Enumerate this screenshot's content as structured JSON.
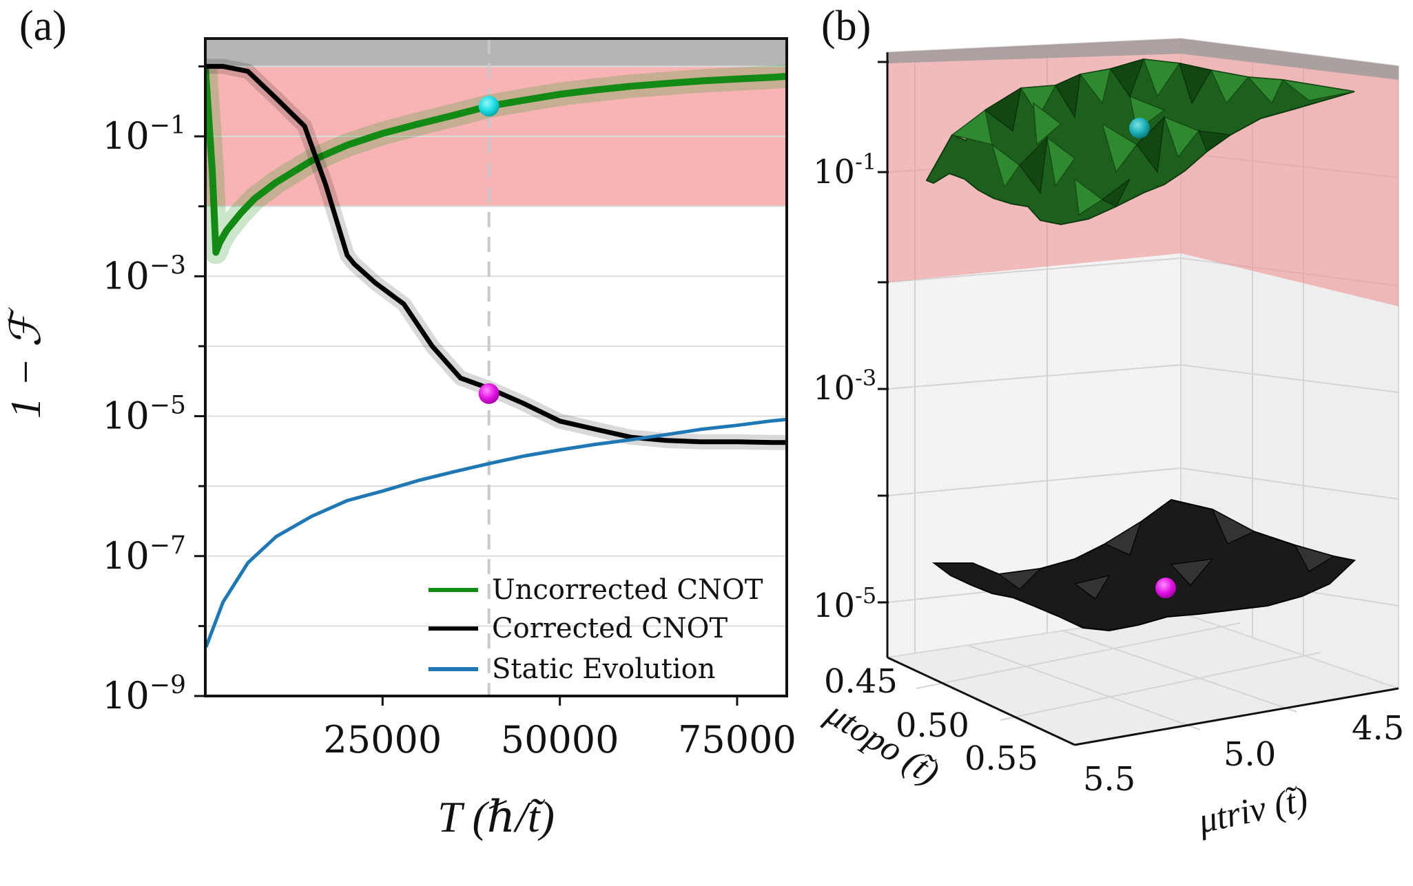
{
  "panel_a": {
    "label": "(a)",
    "ylabel": "1 − ℱ",
    "xlabel": "T (ℏ/t̃)",
    "xticks": [
      "25000",
      "50000",
      "75000"
    ],
    "yticks": [
      "10^-1",
      "10^-3",
      "10^-5",
      "10^-7",
      "10^-9"
    ],
    "legend": [
      "Uncorrected CNOT",
      "Corrected CNOT",
      "Static Evolution"
    ]
  },
  "panel_b": {
    "label": "(b)",
    "zticks": [
      "10^-1",
      "10^-3",
      "10^-5"
    ],
    "topo_ticks": [
      "0.45",
      "0.50",
      "0.55"
    ],
    "triv_ticks": [
      "5.5",
      "5.0",
      "4.5"
    ],
    "topo_label": "μtopo (t̃)",
    "triv_label": "μtriv (t̃)"
  },
  "chart_data": [
    {
      "type": "line",
      "title": "",
      "xlabel": "T (ℏ/t̃)",
      "ylabel": "1 − ℱ",
      "xlim": [
        0,
        82000
      ],
      "ylim": [
        1e-09,
        2.5
      ],
      "yscale": "log",
      "grid": true,
      "legend_position": "bottom-right",
      "vline_x": 40000,
      "shaded_regions": [
        {
          "y_from": 0.01,
          "y_to": 1.0,
          "color": "#f8b4b4"
        },
        {
          "y_from": 1.0,
          "y_to": 2.5,
          "color": "#b5b5b5"
        }
      ],
      "series": [
        {
          "name": "Uncorrected CNOT",
          "color": "#138a13",
          "x": [
            0,
            1000,
            1500,
            2000,
            3000,
            4000,
            5000,
            7000,
            10000,
            15000,
            20000,
            25000,
            30000,
            35000,
            40000,
            45000,
            50000,
            55000,
            60000,
            65000,
            70000,
            75000,
            80000,
            82000
          ],
          "y": [
            1.0,
            0.03,
            0.0022,
            0.003,
            0.0045,
            0.006,
            0.008,
            0.013,
            0.022,
            0.045,
            0.075,
            0.11,
            0.15,
            0.2,
            0.27,
            0.33,
            0.4,
            0.46,
            0.52,
            0.57,
            0.62,
            0.66,
            0.7,
            0.72
          ]
        },
        {
          "name": "Corrected CNOT",
          "color": "#000000",
          "x": [
            0,
            2500,
            6000,
            10000,
            14000,
            17000,
            20000,
            21000,
            24000,
            28000,
            32000,
            36000,
            40000,
            45000,
            50000,
            55000,
            60000,
            65000,
            70000,
            75000,
            80000,
            82000
          ],
          "y": [
            1.0,
            1.0,
            0.85,
            0.35,
            0.14,
            0.02,
            0.002,
            0.0015,
            0.0008,
            0.0004,
            0.0001,
            3.5e-05,
            2.5e-05,
            1.5e-05,
            8.5e-06,
            6.5e-06,
            5e-06,
            4.5e-06,
            4.3e-06,
            4.3e-06,
            4.2e-06,
            4.2e-06
          ]
        },
        {
          "name": "Static Evolution",
          "color": "#1f77b4",
          "x": [
            100,
            2500,
            6000,
            10000,
            15000,
            20000,
            25000,
            30000,
            35000,
            40000,
            45000,
            50000,
            55000,
            60000,
            65000,
            70000,
            75000,
            80000,
            82000
          ],
          "y": [
            5e-09,
            2.2e-08,
            8e-08,
            1.9e-07,
            3.7e-07,
            6.2e-07,
            8.5e-07,
            1.2e-06,
            1.6e-06,
            2.1e-06,
            2.7e-06,
            3.3e-06,
            3.95e-06,
            4.6e-06,
            5.45e-06,
            6.5e-06,
            7.4e-06,
            8.6e-06,
            9e-06
          ]
        }
      ],
      "markers": [
        {
          "x": 40000,
          "y": 0.27,
          "color": "#19d8e0"
        },
        {
          "x": 40000,
          "y": 2.1e-05,
          "color": "#e010e0"
        }
      ]
    },
    {
      "type": "surface3d",
      "title": "",
      "xlabel": "μtriv (t̃)",
      "ylabel": "μtopo (t̃)",
      "zlabel": "",
      "zscale": "log",
      "x_ticks": [
        5.5,
        5.0,
        4.5
      ],
      "y_ticks": [
        0.45,
        0.5,
        0.55
      ],
      "z_ticks": [
        "10^-1",
        "10^-3",
        "10^-5"
      ],
      "surfaces": [
        {
          "name": "Uncorrected CNOT",
          "color": "#1f6a1f",
          "approx_level": 0.05
        },
        {
          "name": "Corrected CNOT",
          "color": "#111111",
          "approx_level": 8e-06
        }
      ],
      "markers": [
        {
          "color": "#19b8c0",
          "surface": "Uncorrected CNOT"
        },
        {
          "color": "#e010e0",
          "surface": "Corrected CNOT"
        }
      ]
    }
  ]
}
